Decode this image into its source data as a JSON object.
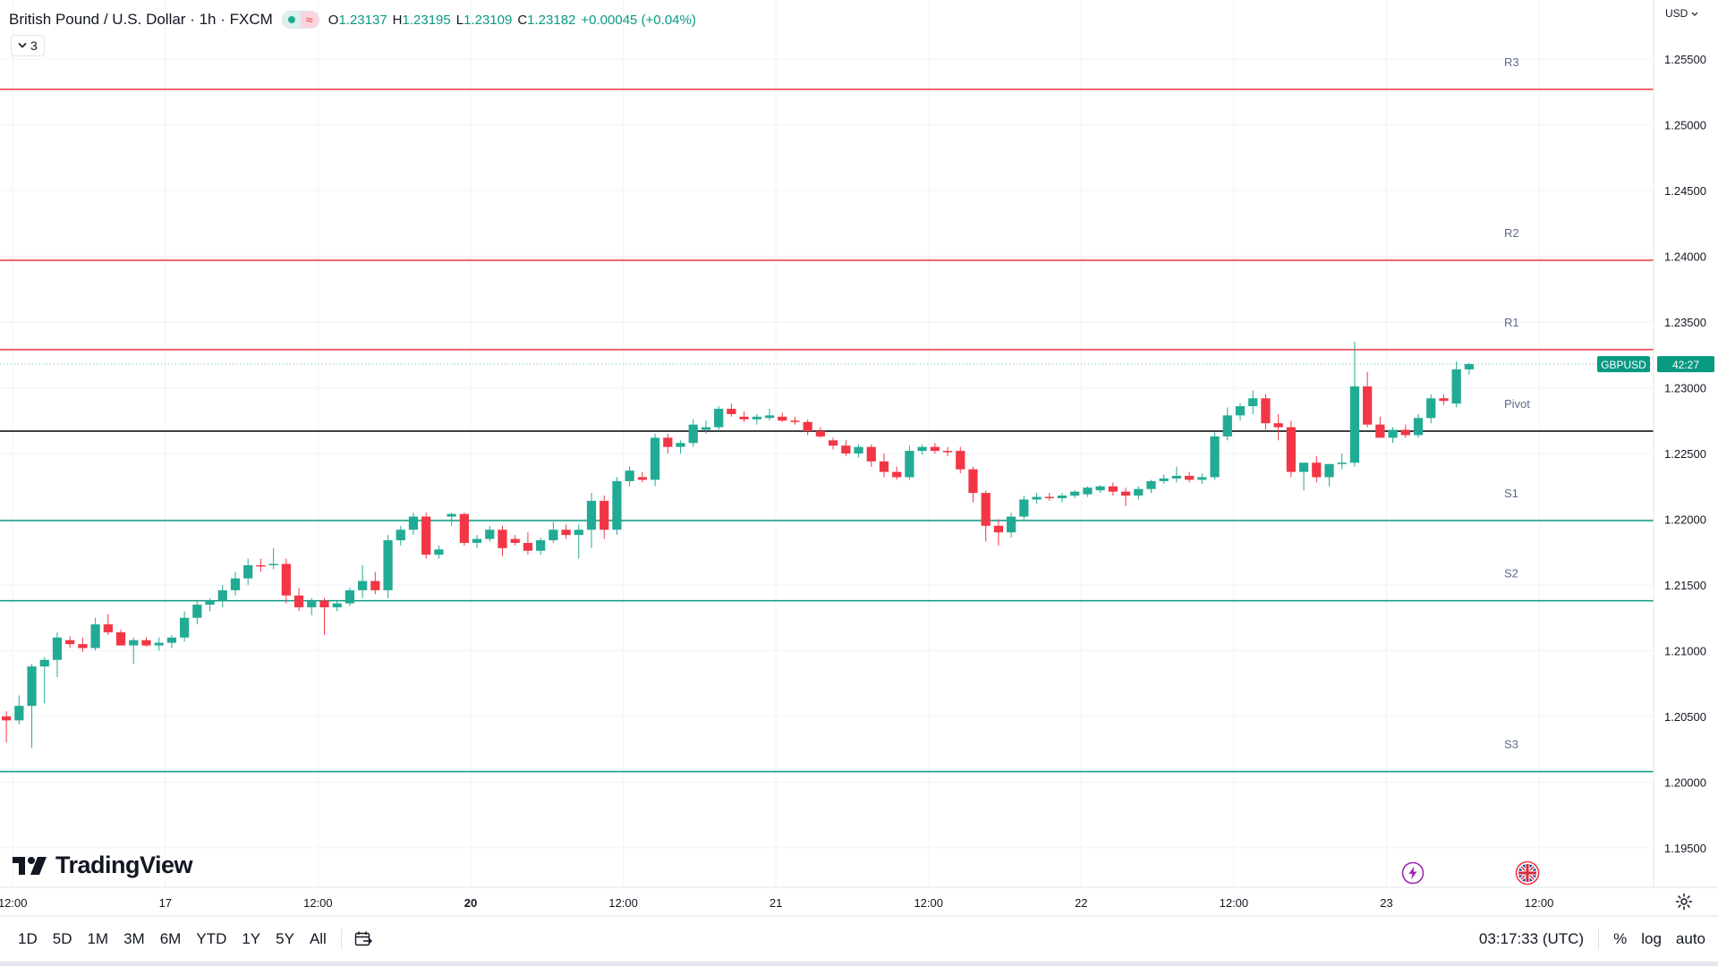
{
  "header": {
    "title": "British Pound / U.S. Dollar · 1h · FXCM",
    "ohlc": {
      "o_label": "O",
      "o": "1.23137",
      "h_label": "H",
      "h": "1.23195",
      "l_label": "L",
      "l": "1.23109",
      "c_label": "C",
      "c": "1.23182",
      "change": "+0.00045 (+0.04%)"
    },
    "indicator_count": "3"
  },
  "axis": {
    "currency": "USD",
    "price_ticks": [
      "1.25500",
      "1.25000",
      "1.24500",
      "1.24000",
      "1.23500",
      "1.23000",
      "1.22500",
      "1.22000",
      "1.21500",
      "1.21000",
      "1.20500",
      "1.20000",
      "1.19500"
    ],
    "time_ticks": [
      "12:00",
      "17",
      "12:00",
      "20",
      "12:00",
      "21",
      "12:00",
      "22",
      "12:00",
      "23",
      "12:00"
    ],
    "time_ticks_bold": [
      "20"
    ]
  },
  "price_badge": {
    "symbol": "GBPUSD",
    "countdown": "42:27",
    "price": 1.2318,
    "color": "#089981"
  },
  "logo": "TradingView",
  "bottom": {
    "ranges": [
      "1D",
      "5D",
      "1M",
      "3M",
      "6M",
      "YTD",
      "1Y",
      "5Y",
      "All"
    ],
    "clock": "03:17:33 (UTC)",
    "percent": "%",
    "log": "log",
    "auto": "auto"
  },
  "icons": [
    "chevron-down-icon",
    "goto-date-icon",
    "settings-icon",
    "lightning-icon",
    "uk-flag-icon",
    "tradingview-logo-icon"
  ],
  "colors": {
    "up": "#22ab94",
    "down": "#f23645",
    "resistance": "#f23645",
    "support": "#089981",
    "pivot": "#000000",
    "grid": "#f0f3fa"
  },
  "chart_data": {
    "type": "candlestick",
    "ylim": [
      1.192,
      1.2595
    ],
    "x_range": [
      0,
      130
    ],
    "time_ticks_at": [
      1,
      13,
      25,
      37,
      49,
      61,
      73,
      85,
      97,
      109,
      121
    ],
    "levels": [
      {
        "label": "R3",
        "value": 1.2527,
        "kind": "resistance"
      },
      {
        "label": "R2",
        "value": 1.2397,
        "kind": "resistance"
      },
      {
        "label": "R1",
        "value": 1.2329,
        "kind": "resistance"
      },
      {
        "label": "Pivot",
        "value": 1.2267,
        "kind": "pivot"
      },
      {
        "label": "S1",
        "value": 1.2199,
        "kind": "support"
      },
      {
        "label": "S2",
        "value": 1.2138,
        "kind": "support"
      },
      {
        "label": "S3",
        "value": 1.2008,
        "kind": "support"
      }
    ],
    "candles": [
      [
        1.205,
        1.2054,
        1.203,
        1.2047
      ],
      [
        1.2047,
        1.2066,
        1.2044,
        1.2058
      ],
      [
        1.2058,
        1.209,
        1.2026,
        1.2088
      ],
      [
        1.2088,
        1.2095,
        1.206,
        1.2093
      ],
      [
        1.2093,
        1.2114,
        1.208,
        1.211
      ],
      [
        1.2108,
        1.2111,
        1.2102,
        1.2105
      ],
      [
        1.2105,
        1.211,
        1.2099,
        1.2102
      ],
      [
        1.2102,
        1.2125,
        1.21,
        1.212
      ],
      [
        1.212,
        1.2128,
        1.2112,
        1.2114
      ],
      [
        1.2114,
        1.2116,
        1.2104,
        1.2104
      ],
      [
        1.2104,
        1.211,
        1.209,
        1.2108
      ],
      [
        1.2108,
        1.211,
        1.2103,
        1.2104
      ],
      [
        1.2104,
        1.211,
        1.21,
        1.2106
      ],
      [
        1.2106,
        1.2112,
        1.2102,
        1.211
      ],
      [
        1.211,
        1.213,
        1.2107,
        1.2125
      ],
      [
        1.2125,
        1.2138,
        1.212,
        1.2135
      ],
      [
        1.2135,
        1.214,
        1.213,
        1.2138
      ],
      [
        1.2138,
        1.215,
        1.2133,
        1.2146
      ],
      [
        1.2146,
        1.216,
        1.2142,
        1.2155
      ],
      [
        1.2155,
        1.217,
        1.215,
        1.2165
      ],
      [
        1.2165,
        1.217,
        1.216,
        1.2164
      ],
      [
        1.2165,
        1.2178,
        1.2162,
        1.2166
      ],
      [
        1.2166,
        1.217,
        1.2136,
        1.2142
      ],
      [
        1.2142,
        1.2148,
        1.213,
        1.2133
      ],
      [
        1.2133,
        1.214,
        1.2127,
        1.2138
      ],
      [
        1.2138,
        1.214,
        1.2112,
        1.2133
      ],
      [
        1.2133,
        1.2138,
        1.213,
        1.2136
      ],
      [
        1.2136,
        1.2148,
        1.2134,
        1.2146
      ],
      [
        1.2146,
        1.2165,
        1.214,
        1.2153
      ],
      [
        1.2153,
        1.216,
        1.2143,
        1.2146
      ],
      [
        1.2146,
        1.2188,
        1.214,
        1.2184
      ],
      [
        1.2184,
        1.2195,
        1.218,
        1.2192
      ],
      [
        1.2192,
        1.2205,
        1.2188,
        1.2202
      ],
      [
        1.2202,
        1.2205,
        1.217,
        1.2173
      ],
      [
        1.2173,
        1.218,
        1.217,
        1.2177
      ],
      [
        1.2202,
        1.2205,
        1.2195,
        1.2204
      ],
      [
        1.2204,
        1.2205,
        1.218,
        1.2182
      ],
      [
        1.2182,
        1.2188,
        1.2178,
        1.2185
      ],
      [
        1.2185,
        1.2195,
        1.2183,
        1.2192
      ],
      [
        1.2192,
        1.2195,
        1.2172,
        1.2178
      ],
      [
        1.2185,
        1.2188,
        1.218,
        1.2182
      ],
      [
        1.2182,
        1.219,
        1.2173,
        1.2176
      ],
      [
        1.2176,
        1.2186,
        1.2173,
        1.2184
      ],
      [
        1.2184,
        1.2198,
        1.2182,
        1.2192
      ],
      [
        1.2192,
        1.2196,
        1.2185,
        1.2188
      ],
      [
        1.2188,
        1.2196,
        1.217,
        1.2192
      ],
      [
        1.2192,
        1.222,
        1.2178,
        1.2214
      ],
      [
        1.2214,
        1.2218,
        1.2185,
        1.2192
      ],
      [
        1.2192,
        1.2232,
        1.2188,
        1.2229
      ],
      [
        1.2229,
        1.224,
        1.2225,
        1.2237
      ],
      [
        1.2232,
        1.2236,
        1.2228,
        1.223
      ],
      [
        1.223,
        1.2265,
        1.2225,
        1.2262
      ],
      [
        1.2262,
        1.2265,
        1.225,
        1.2255
      ],
      [
        1.2255,
        1.226,
        1.225,
        1.2258
      ],
      [
        1.2258,
        1.2276,
        1.2255,
        1.2272
      ],
      [
        1.2268,
        1.2275,
        1.2265,
        1.227
      ],
      [
        1.227,
        1.2286,
        1.2267,
        1.2284
      ],
      [
        1.2284,
        1.2288,
        1.2278,
        1.228
      ],
      [
        1.2278,
        1.2282,
        1.2274,
        1.2276
      ],
      [
        1.2276,
        1.228,
        1.2272,
        1.2278
      ],
      [
        1.2277,
        1.2284,
        1.2275,
        1.2279
      ],
      [
        1.2278,
        1.2281,
        1.2274,
        1.2275
      ],
      [
        1.2275,
        1.2278,
        1.2272,
        1.2274
      ],
      [
        1.2274,
        1.2276,
        1.2264,
        1.2267
      ],
      [
        1.2267,
        1.227,
        1.2262,
        1.2263
      ],
      [
        1.226,
        1.2262,
        1.2253,
        1.2256
      ],
      [
        1.2256,
        1.226,
        1.2248,
        1.225
      ],
      [
        1.225,
        1.2257,
        1.2247,
        1.2255
      ],
      [
        1.2255,
        1.2257,
        1.224,
        1.2244
      ],
      [
        1.2244,
        1.225,
        1.2232,
        1.2236
      ],
      [
        1.2236,
        1.224,
        1.223,
        1.2232
      ],
      [
        1.2232,
        1.2256,
        1.223,
        1.2252
      ],
      [
        1.2252,
        1.2257,
        1.2249,
        1.2255
      ],
      [
        1.2255,
        1.2258,
        1.225,
        1.2252
      ],
      [
        1.2252,
        1.2255,
        1.2248,
        1.2251
      ],
      [
        1.2252,
        1.2255,
        1.2235,
        1.2238
      ],
      [
        1.2238,
        1.224,
        1.2213,
        1.222
      ],
      [
        1.222,
        1.2222,
        1.2183,
        1.2195
      ],
      [
        1.2195,
        1.22,
        1.218,
        1.219
      ],
      [
        1.219,
        1.2205,
        1.2186,
        1.2202
      ],
      [
        1.2202,
        1.2218,
        1.22,
        1.2215
      ],
      [
        1.2215,
        1.222,
        1.2212,
        1.2217
      ],
      [
        1.2217,
        1.222,
        1.2214,
        1.2216
      ],
      [
        1.2216,
        1.222,
        1.2213,
        1.2218
      ],
      [
        1.2218,
        1.2222,
        1.2216,
        1.2221
      ],
      [
        1.2219,
        1.2225,
        1.2217,
        1.2224
      ],
      [
        1.2222,
        1.2226,
        1.222,
        1.2225
      ],
      [
        1.2225,
        1.2228,
        1.2218,
        1.2221
      ],
      [
        1.2221,
        1.2224,
        1.221,
        1.2218
      ],
      [
        1.2218,
        1.2225,
        1.2215,
        1.2223
      ],
      [
        1.2223,
        1.223,
        1.222,
        1.2229
      ],
      [
        1.2229,
        1.2234,
        1.2227,
        1.2231
      ],
      [
        1.2231,
        1.224,
        1.2228,
        1.2233
      ],
      [
        1.2233,
        1.2236,
        1.2228,
        1.223
      ],
      [
        1.223,
        1.2235,
        1.2227,
        1.2232
      ],
      [
        1.2232,
        1.2266,
        1.223,
        1.2263
      ],
      [
        1.2263,
        1.2285,
        1.226,
        1.2279
      ],
      [
        1.2279,
        1.2288,
        1.2275,
        1.2286
      ],
      [
        1.2286,
        1.2298,
        1.228,
        1.2292
      ],
      [
        1.2292,
        1.2295,
        1.2268,
        1.2273
      ],
      [
        1.2273,
        1.228,
        1.226,
        1.227
      ],
      [
        1.227,
        1.2275,
        1.2232,
        1.2236
      ],
      [
        1.2236,
        1.2243,
        1.2222,
        1.2243
      ],
      [
        1.2243,
        1.2248,
        1.2228,
        1.2232
      ],
      [
        1.2232,
        1.2242,
        1.2225,
        1.2242
      ],
      [
        1.2242,
        1.225,
        1.2238,
        1.2243
      ],
      [
        1.2243,
        1.2335,
        1.224,
        1.2301
      ],
      [
        1.2301,
        1.2312,
        1.227,
        1.2272
      ],
      [
        1.2272,
        1.2278,
        1.2262,
        1.2262
      ],
      [
        1.2262,
        1.227,
        1.2258,
        1.2268
      ],
      [
        1.2268,
        1.2272,
        1.2262,
        1.2264
      ],
      [
        1.2264,
        1.228,
        1.2262,
        1.2277
      ],
      [
        1.2277,
        1.2295,
        1.2273,
        1.2292
      ],
      [
        1.2292,
        1.2295,
        1.2287,
        1.229
      ],
      [
        1.2288,
        1.232,
        1.2285,
        1.2314
      ],
      [
        1.2314,
        1.2319,
        1.231,
        1.2318
      ]
    ]
  }
}
